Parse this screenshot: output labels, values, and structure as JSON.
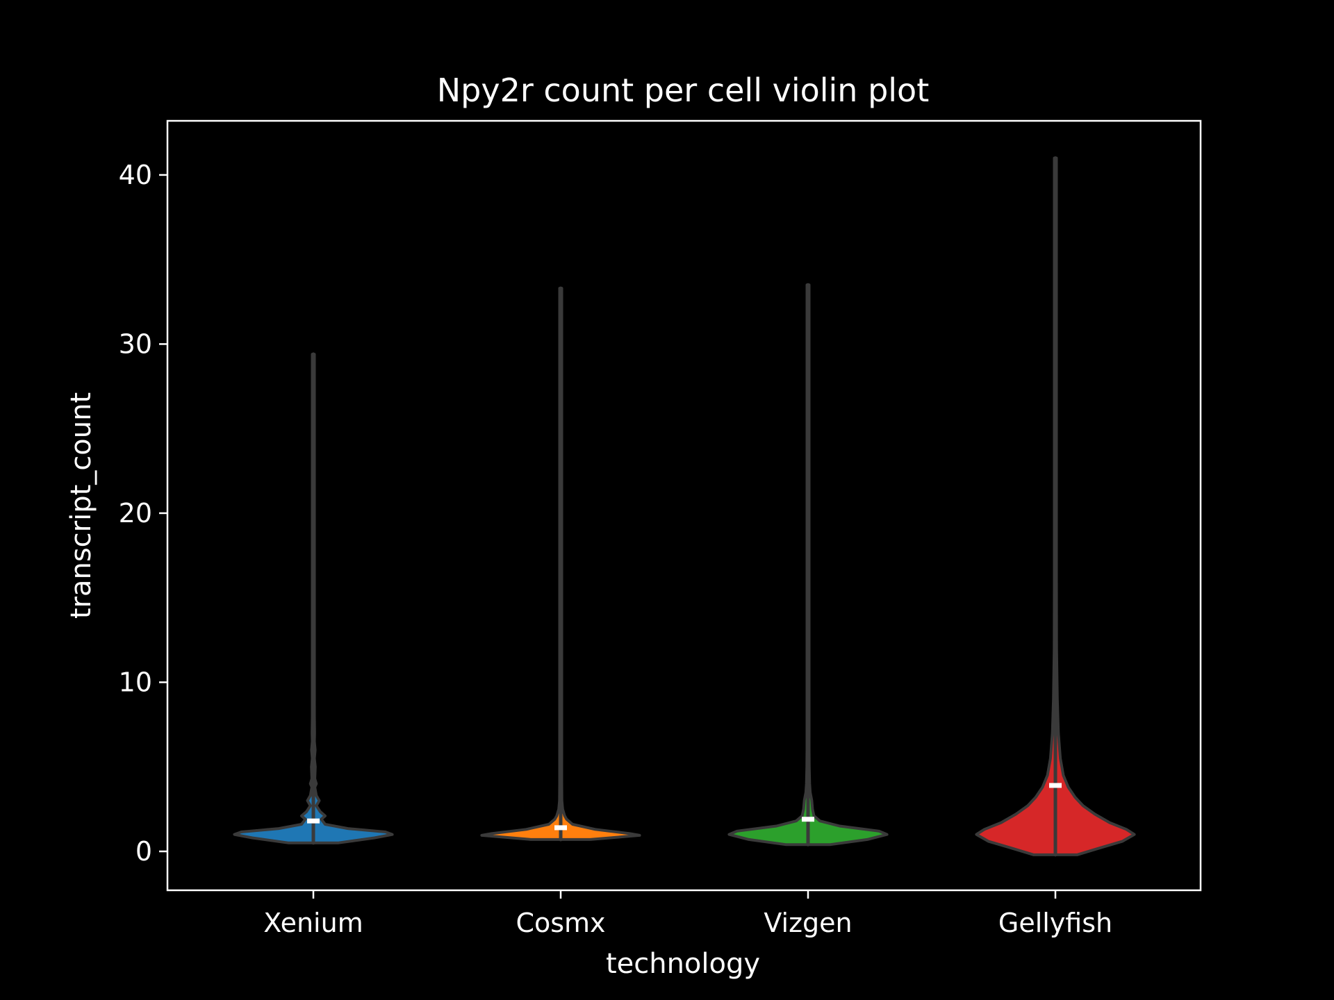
{
  "chart_data": {
    "type": "violin",
    "title": "Npy2r count per cell violin plot",
    "xlabel": "technology",
    "ylabel": "transcript_count",
    "categories": [
      "Xenium",
      "Cosmx",
      "Vizgen",
      "Gellyfish"
    ],
    "ylim": [
      -2.3,
      43.2
    ],
    "yticks": [
      0,
      10,
      20,
      30,
      40
    ],
    "ytick_labels": [
      "0",
      "10",
      "20",
      "30",
      "40"
    ],
    "grid": false,
    "background": "#000000",
    "foreground": "#ffffff",
    "outline_color": "#3a3a3a",
    "series": [
      {
        "category": "Xenium",
        "color": "#1f77b4",
        "median": 1.8,
        "min": 0.5,
        "max": 29.4,
        "profile": [
          [
            0.5,
            0.25
          ],
          [
            0.8,
            0.62
          ],
          [
            1.0,
            0.8
          ],
          [
            1.15,
            0.73
          ],
          [
            1.35,
            0.35
          ],
          [
            1.6,
            0.12
          ],
          [
            1.9,
            0.08
          ],
          [
            2.1,
            0.12
          ],
          [
            2.35,
            0.07
          ],
          [
            2.7,
            0.03
          ],
          [
            3.0,
            0.06
          ],
          [
            3.3,
            0.03
          ],
          [
            3.8,
            0.015
          ],
          [
            4.0,
            0.03
          ],
          [
            4.3,
            0.015
          ],
          [
            5.0,
            0.02
          ],
          [
            5.5,
            0.01
          ],
          [
            6.0,
            0.018
          ],
          [
            6.5,
            0.008
          ],
          [
            7.0,
            0.013
          ],
          [
            8.0,
            0.008
          ],
          [
            9.0,
            0.006
          ],
          [
            12.0,
            0.005
          ],
          [
            20.0,
            0.004
          ],
          [
            29.4,
            0.002
          ]
        ]
      },
      {
        "category": "Cosmx",
        "color": "#ff7f0e",
        "median": 1.4,
        "min": 0.7,
        "max": 33.3,
        "profile": [
          [
            0.7,
            0.3
          ],
          [
            0.85,
            0.6
          ],
          [
            0.95,
            0.8
          ],
          [
            1.05,
            0.7
          ],
          [
            1.3,
            0.35
          ],
          [
            1.6,
            0.12
          ],
          [
            1.9,
            0.06
          ],
          [
            2.1,
            0.04
          ],
          [
            2.5,
            0.02
          ],
          [
            3.0,
            0.012
          ],
          [
            4.0,
            0.008
          ],
          [
            6.0,
            0.006
          ],
          [
            10.0,
            0.005
          ],
          [
            20.0,
            0.004
          ],
          [
            33.3,
            0.002
          ]
        ]
      },
      {
        "category": "Vizgen",
        "color": "#2ca02c",
        "median": 1.9,
        "min": 0.4,
        "max": 33.5,
        "profile": [
          [
            0.4,
            0.22
          ],
          [
            0.7,
            0.6
          ],
          [
            1.0,
            0.8
          ],
          [
            1.2,
            0.72
          ],
          [
            1.5,
            0.32
          ],
          [
            1.8,
            0.12
          ],
          [
            2.1,
            0.06
          ],
          [
            2.5,
            0.045
          ],
          [
            3.0,
            0.038
          ],
          [
            3.5,
            0.022
          ],
          [
            4.0,
            0.016
          ],
          [
            5.0,
            0.012
          ],
          [
            6.0,
            0.009
          ],
          [
            7.0,
            0.007
          ],
          [
            9.0,
            0.006
          ],
          [
            13.0,
            0.005
          ],
          [
            20.0,
            0.004
          ],
          [
            33.5,
            0.002
          ]
        ]
      },
      {
        "category": "Gellyfish",
        "color": "#d62728",
        "median": 3.9,
        "min": -0.2,
        "max": 41.0,
        "profile": [
          [
            -0.2,
            0.22
          ],
          [
            0.2,
            0.45
          ],
          [
            0.6,
            0.68
          ],
          [
            1.0,
            0.8
          ],
          [
            1.3,
            0.72
          ],
          [
            1.7,
            0.55
          ],
          [
            2.2,
            0.4
          ],
          [
            2.7,
            0.28
          ],
          [
            3.2,
            0.2
          ],
          [
            3.8,
            0.13
          ],
          [
            4.5,
            0.08
          ],
          [
            5.5,
            0.05
          ],
          [
            7.0,
            0.03
          ],
          [
            9.0,
            0.02
          ],
          [
            12.0,
            0.012
          ],
          [
            16.0,
            0.008
          ],
          [
            22.0,
            0.006
          ],
          [
            30.0,
            0.004
          ],
          [
            41.0,
            0.002
          ]
        ]
      }
    ]
  }
}
